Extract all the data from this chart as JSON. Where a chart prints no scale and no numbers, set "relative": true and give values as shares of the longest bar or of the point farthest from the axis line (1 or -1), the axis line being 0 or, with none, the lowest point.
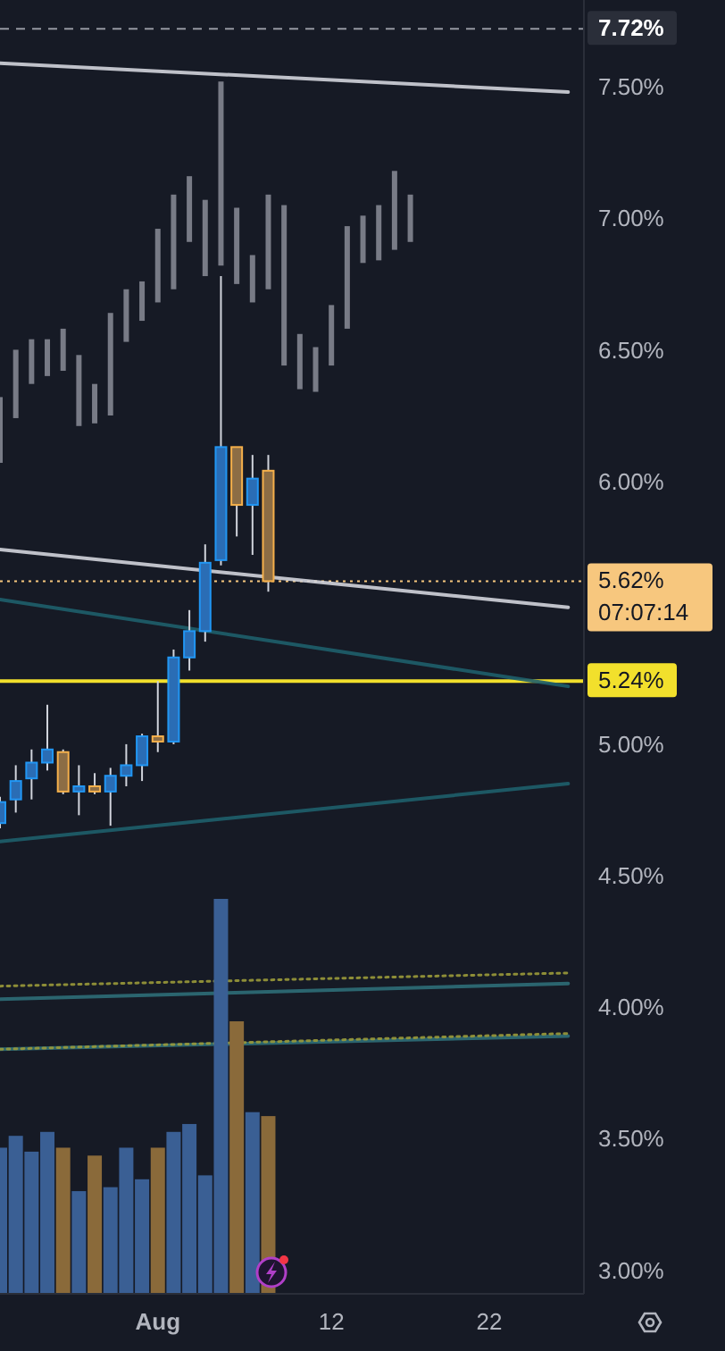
{
  "chart_data": [
    {
      "type": "candlestick",
      "x": [
        "--07-22",
        "--07-23",
        "--07-24",
        "--07-25",
        "--07-26",
        "--07-27",
        "--07-28",
        "--07-29",
        "--07-30",
        "--07-31",
        "--08-01",
        "--08-02",
        "--08-03",
        "--08-04",
        "--08-05",
        "--08-06",
        "--08-07",
        "--08-08"
      ],
      "ohlc": [
        [
          4.7,
          4.8,
          4.68,
          4.78
        ],
        [
          4.79,
          4.92,
          4.74,
          4.86
        ],
        [
          4.87,
          4.98,
          4.79,
          4.93
        ],
        [
          4.93,
          5.15,
          4.9,
          4.98
        ],
        [
          4.97,
          4.98,
          4.81,
          4.82
        ],
        [
          4.82,
          4.92,
          4.73,
          4.84
        ],
        [
          4.84,
          4.89,
          4.81,
          4.82
        ],
        [
          4.82,
          4.91,
          4.69,
          4.88
        ],
        [
          4.88,
          5.0,
          4.84,
          4.92
        ],
        [
          4.92,
          5.04,
          4.86,
          5.03
        ],
        [
          5.03,
          5.24,
          4.97,
          5.01
        ],
        [
          5.01,
          5.36,
          5.0,
          5.33
        ],
        [
          5.33,
          5.51,
          5.28,
          5.43
        ],
        [
          5.43,
          5.76,
          5.39,
          5.69
        ],
        [
          5.7,
          6.78,
          5.68,
          6.13
        ],
        [
          6.13,
          6.13,
          5.79,
          5.91
        ],
        [
          5.91,
          6.1,
          5.72,
          6.01
        ],
        [
          6.04,
          6.1,
          5.58,
          5.62
        ]
      ],
      "colors": [
        "#2a6db5",
        "#2a6db5",
        "#2a6db5",
        "#2a6db5",
        "#8c6d45",
        "#2a6db5",
        "#8c6d45",
        "#2a6db5",
        "#2a6db5",
        "#2a6db5",
        "#8c6d45",
        "#2a6db5",
        "#2a6db5",
        "#2a6db5",
        "#2a6db5",
        "#8c6d45",
        "#2a6db5",
        "#8c6d45"
      ],
      "series": [
        {
          "type": "bar",
          "color": "#787b86",
          "x": [
            "--07-22",
            "--07-23",
            "--07-24",
            "--07-25",
            "--07-26",
            "--07-27",
            "--07-28",
            "--07-29",
            "--07-30",
            "--07-31",
            "--08-01",
            "--08-02",
            "--08-03",
            "--08-04",
            "--08-05",
            "--08-06",
            "--08-07",
            "--08-08",
            "--08-09",
            "--08-10",
            "--08-11",
            "--08-12",
            "--08-13",
            "--08-14",
            "--08-15",
            "--08-16",
            "--08-17"
          ],
          "base": [
            6.07,
            6.24,
            6.37,
            6.4,
            6.42,
            6.21,
            6.22,
            6.25,
            6.53,
            6.61,
            6.68,
            6.73,
            6.91,
            6.78,
            6.82,
            6.75,
            6.68,
            6.73,
            6.44,
            6.35,
            6.34,
            6.44,
            6.58,
            6.83,
            6.84,
            6.88,
            6.91
          ],
          "values": [
            0.25,
            0.26,
            0.17,
            0.14,
            0.16,
            0.27,
            0.15,
            0.39,
            0.2,
            0.15,
            0.28,
            0.36,
            0.25,
            0.29,
            0.7,
            0.29,
            0.18,
            0.36,
            0.61,
            0.21,
            0.17,
            0.23,
            0.39,
            0.18,
            0.21,
            0.3,
            0.18
          ]
        },
        {
          "type": "line",
          "color": "#d1d4dc",
          "x": [
            "--07-22",
            "--08-27"
          ],
          "values": [
            7.59,
            7.48
          ]
        },
        {
          "type": "line",
          "color": "#d1d4dc",
          "x": [
            "--07-22",
            "--08-27"
          ],
          "values": [
            5.74,
            5.52
          ]
        },
        {
          "type": "line",
          "color": "#1e5f6b",
          "x": [
            "--07-22",
            "--08-27"
          ],
          "values": [
            5.55,
            5.22
          ]
        },
        {
          "type": "line",
          "color": "#1e5f6b",
          "x": [
            "--07-22",
            "--08-27"
          ],
          "values": [
            4.63,
            4.85
          ]
        },
        {
          "type": "line",
          "color": "#9a9a3a",
          "line_style": "dotted",
          "x": [
            "--07-22",
            "--08-27"
          ],
          "values": [
            4.08,
            4.13
          ]
        },
        {
          "type": "line",
          "color": "#2d6e78",
          "x": [
            "--07-22",
            "--08-27"
          ],
          "values": [
            4.03,
            4.09
          ]
        },
        {
          "type": "line",
          "color": "#2d6e78",
          "x": [
            "--07-22",
            "--08-27"
          ],
          "values": [
            3.84,
            3.89
          ]
        },
        {
          "type": "line",
          "color": "#9a9a3a",
          "line_style": "dotted",
          "x": [
            "--07-22",
            "--08-27"
          ],
          "values": [
            3.84,
            3.9
          ]
        }
      ],
      "xlim": [
        "--07-22",
        "--08-28"
      ],
      "xticks": [
        {
          "value": "--08-01",
          "label": "Aug"
        },
        {
          "value": "--08-12",
          "label": "12"
        },
        {
          "value": "--08-22",
          "label": "22"
        }
      ],
      "ylim": [
        2.91,
        7.83
      ],
      "yticks": [
        {
          "value": 3,
          "label": "3.00%"
        },
        {
          "value": 3.5,
          "label": "3.50%"
        },
        {
          "value": 4,
          "label": "4.00%"
        },
        {
          "value": 4.5,
          "label": "4.50%"
        },
        {
          "value": 5,
          "label": "5.00%"
        },
        {
          "value": 6,
          "label": "6.00%"
        },
        {
          "value": 6.5,
          "label": "6.50%"
        },
        {
          "value": 7,
          "label": "7.00%"
        },
        {
          "value": 7.5,
          "label": "7.50%"
        }
      ],
      "ref_lines": [
        {
          "axis": "y",
          "value": 7.72,
          "label": "7.72%",
          "color": "#9598a1",
          "line_style": "dashed"
        },
        {
          "axis": "y",
          "value": 5.62,
          "label": "5.62%",
          "color": "#f7c77e",
          "line_style": "dotted"
        },
        {
          "axis": "y",
          "value": 5.24,
          "label": "5.24%",
          "color": "#f2e02c",
          "line_style": "solid"
        }
      ],
      "annotations": [
        "07:07:14"
      ]
    },
    {
      "type": "bar",
      "relative": true,
      "x": [
        "--07-22",
        "--07-23",
        "--07-24",
        "--07-25",
        "--07-26",
        "--07-27",
        "--07-28",
        "--07-29",
        "--07-30",
        "--07-31",
        "--08-01",
        "--08-02",
        "--08-03",
        "--08-04",
        "--08-05",
        "--08-06",
        "--08-07",
        "--08-08"
      ],
      "xlim": [
        "--07-22",
        "--08-28"
      ],
      "values": [
        0.37,
        0.4,
        0.36,
        0.41,
        0.37,
        0.26,
        0.35,
        0.27,
        0.37,
        0.29,
        0.37,
        0.41,
        0.43,
        0.3,
        1,
        0.69,
        0.46,
        0.45
      ],
      "colors": [
        "#3a5f94",
        "#3a5f94",
        "#3a5f94",
        "#3a5f94",
        "#8a6a3a",
        "#3a5f94",
        "#8a6a3a",
        "#3a5f94",
        "#3a5f94",
        "#3a5f94",
        "#8a6a3a",
        "#3a5f94",
        "#3a5f94",
        "#3a5f94",
        "#3a5f94",
        "#8a6a3a",
        "#3a5f94",
        "#8a6a3a"
      ]
    }
  ]
}
